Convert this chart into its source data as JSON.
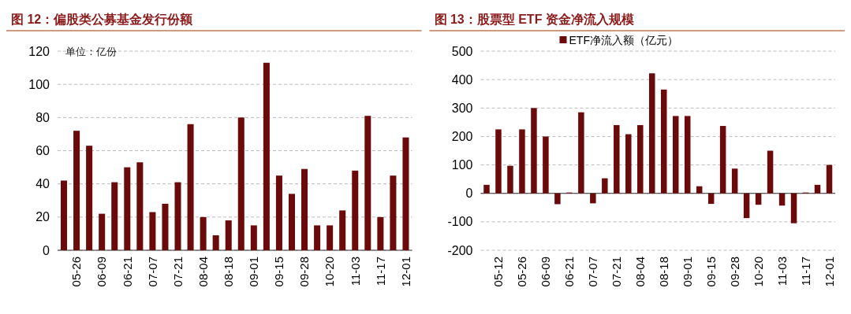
{
  "chart_data": [
    {
      "type": "bar",
      "title": "图 12：偏股类公募基金发行份额",
      "annotations": [
        "单位：亿份"
      ],
      "categories": [
        null,
        "05-26",
        null,
        "06-09",
        null,
        "06-21",
        null,
        "07-07",
        null,
        "07-21",
        null,
        "08-04",
        null,
        "08-18",
        null,
        "09-01",
        null,
        "09-15",
        null,
        "09-28",
        null,
        "10-20",
        null,
        "11-03",
        null,
        "11-17",
        null,
        "12-01"
      ],
      "values": [
        42,
        72,
        63,
        22,
        41,
        50,
        53,
        23,
        28,
        41,
        76,
        20,
        9,
        18,
        80,
        15,
        113,
        45,
        34,
        49,
        15,
        15,
        24,
        48,
        81,
        20,
        45,
        68
      ],
      "color": "#6b0a0a",
      "ylim": [
        0,
        120
      ],
      "yticks": [
        0,
        20,
        40,
        60,
        80,
        100,
        120
      ],
      "grid": "y",
      "legend": false
    },
    {
      "type": "bar",
      "title": "图 13：股票型 ETF 资金净流入规模",
      "categories": [
        null,
        "05-12",
        null,
        "05-26",
        null,
        "06-09",
        null,
        "06-21",
        null,
        "07-07",
        null,
        "07-21",
        null,
        "08-04",
        null,
        "08-18",
        null,
        "09-01",
        null,
        "09-15",
        null,
        "09-28",
        null,
        "10-20",
        null,
        "11-03",
        null,
        "11-17",
        null,
        "12-01"
      ],
      "series": [
        {
          "name": "ETF净流入额（亿元）",
          "color": "#6b0a0a",
          "values": [
            30,
            225,
            97,
            225,
            300,
            200,
            -38,
            3,
            285,
            -35,
            53,
            240,
            208,
            240,
            422,
            365,
            272,
            272,
            25,
            -37,
            237,
            87,
            -87,
            -40,
            150,
            -43,
            -105,
            3,
            30,
            100
          ]
        }
      ],
      "ylim": [
        -200,
        500
      ],
      "yticks": [
        -200,
        -100,
        0,
        100,
        200,
        300,
        400,
        500
      ],
      "grid": "y",
      "legend": "top"
    }
  ]
}
